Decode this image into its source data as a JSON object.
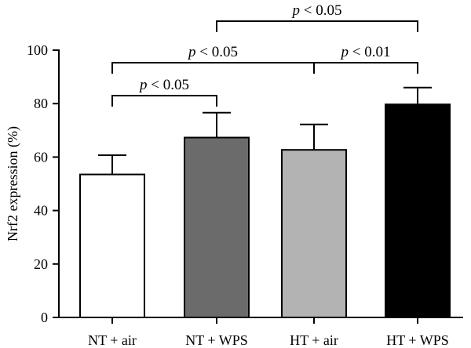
{
  "chart_data": {
    "type": "bar",
    "title": "",
    "xlabel": "",
    "ylabel": "Nrf2 expression (%)",
    "ylim": [
      0,
      100
    ],
    "yticks": [
      0,
      20,
      40,
      60,
      80,
      100
    ],
    "grid": false,
    "categories": [
      "NT + air",
      "NT + WPS",
      "HT + air",
      "HT + WPS"
    ],
    "values": [
      53.5,
      67.3,
      62.7,
      79.7
    ],
    "errors": [
      7.2,
      9.3,
      9.5,
      6.3
    ],
    "colors": [
      "#ffffff",
      "#6b6b6b",
      "#b3b3b3",
      "#000000"
    ],
    "significance": [
      {
        "from": 0,
        "to": 1,
        "label_p": "p",
        "label_rest": " < 0.05"
      },
      {
        "from": 0,
        "to": 2,
        "label_p": "p",
        "label_rest": " < 0.05"
      },
      {
        "from": 2,
        "to": 3,
        "label_p": "p",
        "label_rest": " < 0.01"
      },
      {
        "from": 1,
        "to": 3,
        "label_p": "p",
        "label_rest": " < 0.05"
      }
    ]
  }
}
